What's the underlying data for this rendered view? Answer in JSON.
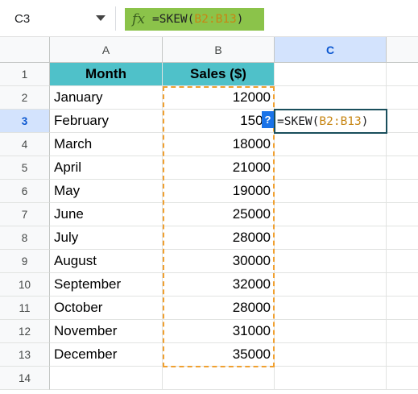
{
  "name_box": {
    "value": "C3"
  },
  "formula_bar": {
    "fx_label": "fx",
    "prefix": "=SKEW(",
    "ref": "B2:B13",
    "suffix": ")"
  },
  "columns": [
    "A",
    "B",
    "C"
  ],
  "selected_column": "C",
  "row_numbers": [
    "1",
    "2",
    "3",
    "4",
    "5",
    "6",
    "7",
    "8",
    "9",
    "10",
    "11",
    "12",
    "13",
    "14"
  ],
  "selected_row": "3",
  "header": {
    "month": "Month",
    "sales": "Sales ($)"
  },
  "rows": [
    {
      "month": "January",
      "sales": "12000"
    },
    {
      "month": "February",
      "sales": "1500"
    },
    {
      "month": "March",
      "sales": "18000"
    },
    {
      "month": "April",
      "sales": "21000"
    },
    {
      "month": "May",
      "sales": "19000"
    },
    {
      "month": "June",
      "sales": "25000"
    },
    {
      "month": "July",
      "sales": "28000"
    },
    {
      "month": "August",
      "sales": "30000"
    },
    {
      "month": "September",
      "sales": "32000"
    },
    {
      "month": "October",
      "sales": "28000"
    },
    {
      "month": "November",
      "sales": "31000"
    },
    {
      "month": "December",
      "sales": "35000"
    }
  ],
  "active_cell": {
    "prefix": "=SKEW(",
    "ref": "B2:B13",
    "suffix": ")"
  },
  "help_badge": "?",
  "colors": {
    "header_fill": "#4fc1c9",
    "range_border": "#f0a030",
    "fx_fill": "#8bc34a",
    "selection": "#d3e3fd"
  }
}
